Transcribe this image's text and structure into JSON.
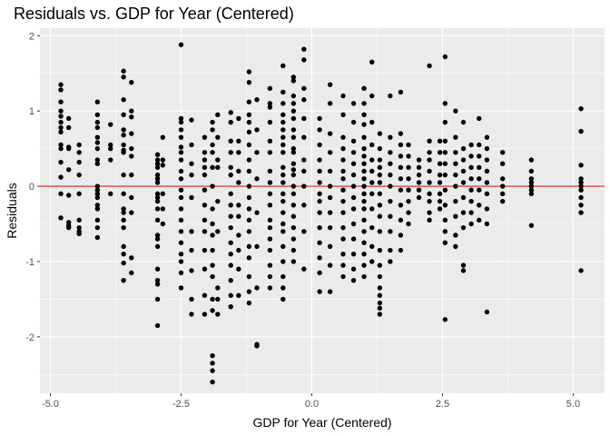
{
  "chart_data": {
    "type": "scatter",
    "title": "Residuals vs. GDP for Year (Centered)",
    "xlabel": "GDP for Year (Centered)",
    "ylabel": "Residuals",
    "xlim": [
      -5.2,
      5.6
    ],
    "ylim": [
      -2.75,
      2.1
    ],
    "x_ticks": [
      -5.0,
      -2.5,
      0.0,
      2.5,
      5.0
    ],
    "x_tick_labels": [
      "-5.0",
      "-2.5",
      "0.0",
      "2.5",
      "5.0"
    ],
    "y_ticks": [
      -2,
      -1,
      0,
      1,
      2
    ],
    "y_tick_labels": [
      "-2",
      "-1",
      "0",
      "1",
      "2"
    ],
    "grid": true,
    "reference_line": {
      "y": 0,
      "color": "#e8423c"
    },
    "colors": {
      "panel": "#ebebeb",
      "grid": "#ffffff",
      "point": "#000000"
    },
    "clusters": [
      {
        "x": -4.8,
        "values": [
          1.35,
          1.28,
          1.12,
          1.0,
          0.93,
          0.85,
          0.78,
          0.72,
          0.55,
          0.5,
          0.32,
          0.12,
          -0.1,
          -0.42
        ]
      },
      {
        "x": -4.65,
        "values": [
          0.9,
          0.78,
          0.52,
          0.5,
          0.22,
          -0.12,
          -0.48,
          -0.52,
          -0.55
        ]
      },
      {
        "x": -4.45,
        "values": [
          0.55,
          0.45,
          0.32,
          0.15,
          -0.1,
          -0.45,
          -0.55,
          -0.6,
          -0.63
        ]
      },
      {
        "x": -4.1,
        "values": [
          1.12,
          0.95,
          0.85,
          0.78,
          0.65,
          0.58,
          0.5,
          0.35,
          0.3,
          0.0,
          -0.05,
          -0.1,
          -0.15,
          -0.25,
          -0.3,
          -0.45,
          -0.55,
          -0.68
        ]
      },
      {
        "x": -3.85,
        "values": [
          0.82,
          0.55,
          0.5,
          0.35,
          -0.1
        ]
      },
      {
        "x": -3.6,
        "values": [
          1.53,
          1.45,
          1.15,
          0.95,
          0.75,
          0.68,
          0.55,
          0.48,
          0.45,
          0.15,
          -0.1,
          -0.3,
          -0.35,
          -0.45,
          -0.55,
          -0.8,
          -0.9,
          -1.02,
          -1.25
        ]
      },
      {
        "x": -3.45,
        "values": [
          1.38,
          1.0,
          0.92,
          0.7,
          0.5,
          0.4,
          0.15,
          -0.15,
          -0.35,
          -0.95,
          -1.15
        ]
      },
      {
        "x": -2.95,
        "values": [
          0.42,
          0.35,
          0.3,
          0.25,
          0.15,
          0.1,
          0.05,
          -0.1,
          -0.15,
          -0.2,
          -0.3,
          -0.45,
          -0.65,
          -0.7,
          -0.8,
          -1.1,
          -1.25,
          -1.3,
          -1.5,
          -1.85
        ]
      },
      {
        "x": -2.85,
        "values": [
          0.65,
          0.35,
          0.28,
          -0.1,
          -0.3,
          -0.5
        ]
      },
      {
        "x": -2.5,
        "values": [
          1.88,
          0.9,
          0.85,
          0.75,
          0.65,
          0.52,
          0.45,
          0.35,
          0.2,
          0.1,
          -0.05,
          -0.15,
          -0.3,
          -0.45,
          -0.6,
          -0.75,
          -0.9,
          -1.0,
          -1.15,
          -1.35
        ]
      },
      {
        "x": -2.3,
        "values": [
          0.88,
          0.55,
          0.3,
          0.15,
          -0.15,
          -0.6,
          -0.85,
          -1.12,
          -1.5,
          -1.7
        ]
      },
      {
        "x": -2.05,
        "values": [
          0.65,
          0.45,
          0.35,
          0.25,
          0.15,
          -0.05,
          -0.25,
          -0.45,
          -0.6,
          -0.85,
          -1.1,
          -1.45,
          -1.7
        ]
      },
      {
        "x": -1.9,
        "values": [
          0.85,
          0.75,
          0.55,
          0.45,
          0.25,
          0.0,
          -0.3,
          -0.5,
          -0.65,
          -0.85,
          -1.05,
          -1.2,
          -1.5,
          -1.65,
          -2.25,
          -2.35,
          -2.45,
          -2.6
        ]
      },
      {
        "x": -1.8,
        "values": [
          0.95,
          0.65,
          0.35,
          0.25,
          -0.2,
          -0.6,
          -1.35,
          -1.5,
          -1.7
        ]
      },
      {
        "x": -1.55,
        "values": [
          0.98,
          0.85,
          0.6,
          0.45,
          0.25,
          0.15,
          -0.1,
          -0.25,
          -0.4,
          -0.55,
          -0.75,
          -0.9,
          -1.05,
          -1.25,
          -1.45,
          -1.6
        ]
      },
      {
        "x": -1.4,
        "values": [
          0.9,
          0.6,
          0.45,
          0.2,
          0.05,
          -0.25,
          -0.4,
          -0.65,
          -0.85,
          -1.1,
          -1.45
        ]
      },
      {
        "x": -1.2,
        "values": [
          1.52,
          1.38,
          1.12,
          0.95,
          0.85,
          0.72,
          0.55,
          0.35,
          0.2,
          0.0,
          -0.15,
          -0.3,
          -0.45,
          -0.6,
          -0.8,
          -0.95,
          -1.2,
          -1.4,
          -1.55
        ]
      },
      {
        "x": -1.05,
        "values": [
          1.15,
          0.75,
          0.45,
          0.1,
          -0.35,
          -0.8,
          -1.35,
          -2.1,
          -2.12
        ]
      },
      {
        "x": -0.8,
        "values": [
          1.3,
          1.1,
          1.05,
          0.85,
          0.6,
          0.45,
          0.2,
          0.05,
          -0.1,
          -0.25,
          -0.45,
          -0.55,
          -0.7,
          -0.85,
          -1.05,
          -1.2,
          -1.35
        ]
      },
      {
        "x": -0.55,
        "values": [
          1.6,
          1.25,
          1.1,
          0.95,
          0.85,
          0.75,
          0.65,
          0.55,
          0.45,
          0.25,
          0.15,
          0.05,
          -0.1,
          -0.2,
          -0.35,
          -0.5,
          -0.6,
          -0.8,
          -1.0,
          -1.2,
          -1.35,
          -1.5
        ]
      },
      {
        "x": -0.35,
        "values": [
          1.45,
          1.4,
          1.2,
          1.1,
          1.0,
          0.9,
          0.75,
          0.65,
          0.5,
          0.45,
          0.3,
          0.22,
          0.15,
          0.0,
          -0.1,
          -0.25,
          -0.4,
          -0.55,
          -0.7,
          -0.85,
          -1.0
        ]
      },
      {
        "x": -0.15,
        "values": [
          1.82,
          1.68,
          1.3,
          1.15,
          0.9,
          0.65,
          0.35,
          0.2,
          0.0,
          -0.25,
          -0.6,
          -1.1
        ]
      },
      {
        "x": 0.15,
        "values": [
          0.9,
          0.75,
          0.55,
          0.35,
          0.2,
          0.05,
          -0.1,
          -0.2,
          -0.35,
          -0.55,
          -0.75,
          -0.95,
          -1.15,
          -1.4
        ]
      },
      {
        "x": 0.35,
        "values": [
          1.35,
          1.1,
          0.7,
          0.45,
          0.2,
          0.0,
          -0.15,
          -0.35,
          -0.55,
          -0.8,
          -1.05,
          -1.4
        ]
      },
      {
        "x": 0.6,
        "values": [
          1.2,
          0.95,
          0.65,
          0.5,
          0.35,
          0.2,
          0.1,
          -0.05,
          -0.2,
          -0.35,
          -0.55,
          -0.7,
          -0.9,
          -1.05,
          -1.2
        ]
      },
      {
        "x": 0.8,
        "values": [
          1.1,
          0.85,
          0.6,
          0.45,
          0.3,
          0.15,
          0.0,
          -0.15,
          -0.3,
          -0.5,
          -0.7,
          -0.9,
          -1.1,
          -1.25
        ]
      },
      {
        "x": 1.0,
        "values": [
          1.3,
          1.1,
          0.95,
          0.82,
          0.65,
          0.5,
          0.4,
          0.3,
          0.2,
          0.1,
          0.0,
          -0.1,
          -0.2,
          -0.3,
          -0.45,
          -0.6,
          -0.75,
          -0.9,
          -1.05,
          -1.2
        ]
      },
      {
        "x": 1.15,
        "values": [
          1.65,
          1.2,
          0.85,
          0.55,
          0.35,
          0.2,
          0.05,
          -0.1,
          -0.3,
          -0.55,
          -0.8,
          -1.0
        ]
      },
      {
        "x": 1.3,
        "values": [
          0.7,
          0.5,
          0.35,
          0.25,
          0.15,
          0.05,
          -0.1,
          -0.25,
          -0.4,
          -0.6,
          -0.85,
          -1.05,
          -1.2,
          -1.35,
          -1.45,
          -1.55,
          -1.62,
          -1.7
        ]
      },
      {
        "x": 1.5,
        "values": [
          1.2,
          0.65,
          0.45,
          0.3,
          0.15,
          0.0,
          -0.2,
          -0.4,
          -0.6,
          -0.85,
          -1.0
        ]
      },
      {
        "x": 1.7,
        "values": [
          1.25,
          0.7,
          0.55,
          0.4,
          0.25,
          0.1,
          -0.05,
          -0.25,
          -0.45,
          -0.65,
          -0.85
        ]
      },
      {
        "x": 1.85,
        "values": [
          0.55,
          0.4,
          0.25,
          0.1,
          -0.05,
          -0.2,
          -0.35,
          -0.5
        ]
      },
      {
        "x": 2.05,
        "values": [
          0.35,
          0.25,
          0.15,
          0.05,
          -0.05,
          -0.15
        ]
      },
      {
        "x": 2.25,
        "values": [
          1.6,
          0.6,
          0.45,
          0.35,
          0.2,
          0.05,
          -0.1,
          -0.2,
          -0.35,
          -0.45
        ]
      },
      {
        "x": 2.45,
        "values": [
          0.6,
          0.45,
          0.3,
          0.15,
          0.05,
          -0.1,
          -0.2,
          -0.3
        ]
      },
      {
        "x": 2.55,
        "values": [
          1.72,
          1.1,
          0.85,
          0.6,
          0.45,
          0.3,
          0.15,
          -0.05,
          -0.25,
          -0.45,
          -0.6,
          -0.75,
          -1.77
        ]
      },
      {
        "x": 2.75,
        "values": [
          1.0,
          0.65,
          0.45,
          0.3,
          0.15,
          0.0,
          -0.2,
          -0.4,
          -0.65,
          -0.8
        ]
      },
      {
        "x": 2.9,
        "values": [
          0.85,
          0.5,
          0.35,
          0.2,
          0.05,
          -0.15,
          -0.35,
          -0.55,
          -1.05,
          -1.12
        ]
      },
      {
        "x": 3.05,
        "values": [
          0.55,
          0.4,
          0.25,
          0.1,
          -0.05,
          -0.2,
          -0.35,
          -0.5
        ]
      },
      {
        "x": 3.2,
        "values": [
          0.9,
          0.55,
          0.4,
          0.25,
          0.1,
          -0.05,
          -0.25,
          -0.45
        ]
      },
      {
        "x": 3.35,
        "values": [
          0.65,
          0.5,
          0.35,
          0.2,
          0.05,
          -0.1,
          -0.3,
          -0.5,
          -1.67
        ]
      },
      {
        "x": 3.65,
        "values": [
          0.45,
          0.3,
          0.1,
          0.0,
          -0.1,
          -0.2
        ]
      },
      {
        "x": 4.2,
        "values": [
          0.35,
          0.2,
          0.1,
          0.05,
          0.0,
          -0.05,
          -0.1,
          -0.52
        ]
      },
      {
        "x": 5.15,
        "values": [
          1.03,
          0.73,
          0.28,
          0.1,
          0.05,
          0.0,
          -0.05,
          -0.15,
          -0.25,
          -0.35,
          -1.12
        ]
      }
    ]
  }
}
